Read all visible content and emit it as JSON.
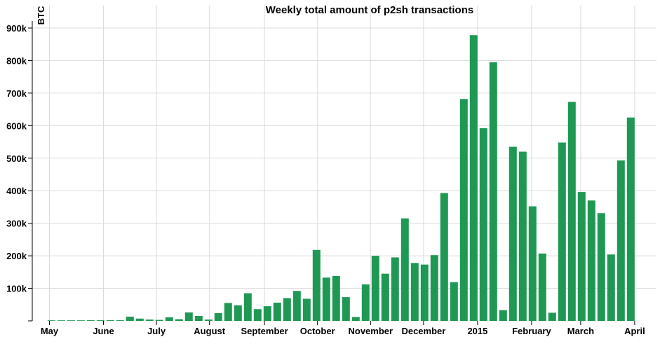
{
  "chart_data": {
    "type": "bar",
    "title": "Weekly total amount of p2sh transactions",
    "ylabel": "BTC",
    "xlabel": "",
    "ylim": [
      0,
      900000
    ],
    "grid": true,
    "yticks": [
      100000,
      200000,
      300000,
      400000,
      500000,
      600000,
      700000,
      800000,
      900000
    ],
    "ytick_labels": [
      "100k",
      "200k",
      "300k",
      "400k",
      "500k",
      "600k",
      "700k",
      "800k",
      "900k"
    ],
    "xtick_labels": [
      "May",
      "June",
      "July",
      "August",
      "September",
      "October",
      "November",
      "December",
      "2015",
      "February",
      "March",
      "April"
    ],
    "xtick_week_index": [
      -0.2,
      5.3,
      10.7,
      16.1,
      21.7,
      27.1,
      32.5,
      37.9,
      43.4,
      48.9,
      53.9,
      59.4
    ],
    "color": "#1f9854",
    "values": [
      1000,
      1000,
      500,
      1000,
      2000,
      2000,
      2000,
      2000,
      13000,
      7000,
      4000,
      3000,
      11000,
      5000,
      26000,
      15000,
      4000,
      24000,
      55000,
      48000,
      85000,
      36000,
      45000,
      56000,
      70000,
      92000,
      68000,
      218000,
      133000,
      138000,
      73000,
      12000,
      112000,
      200000,
      145000,
      195000,
      315000,
      178000,
      173000,
      202000,
      393000,
      119000,
      682000,
      878000,
      592000,
      795000,
      33000,
      535000,
      520000,
      352000,
      207000,
      25000,
      548000,
      673000,
      396000,
      370000,
      331000,
      204000,
      493000,
      625000
    ]
  }
}
